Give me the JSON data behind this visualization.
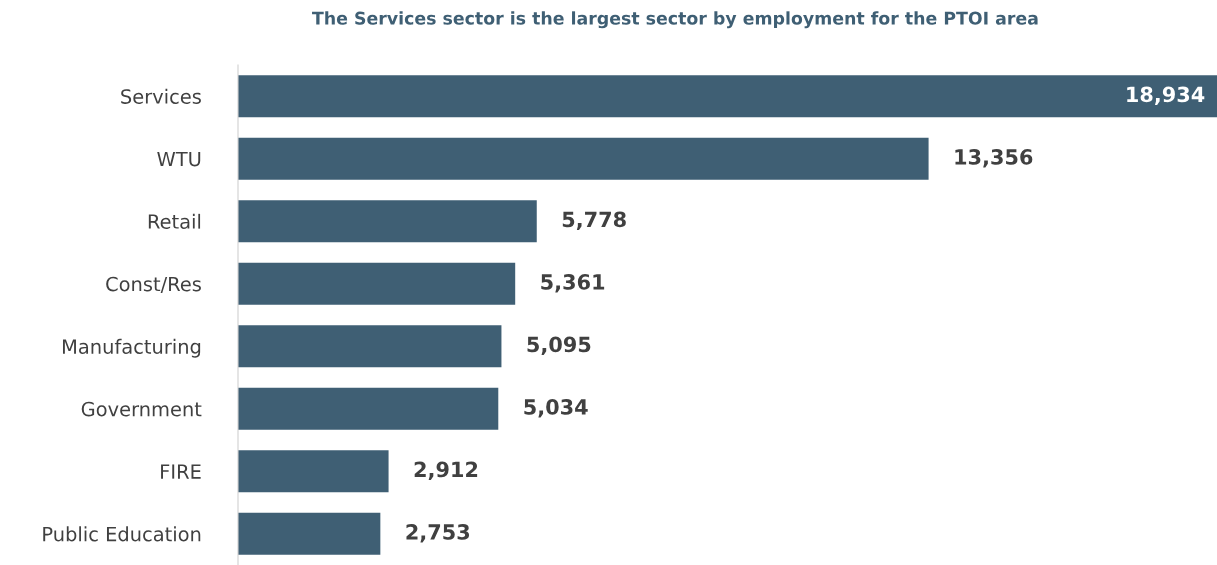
{
  "chart_data": {
    "type": "bar",
    "orientation": "horizontal",
    "title": "The Services sector is the largest sector by employment for the PTOI area",
    "categories": [
      "Services",
      "WTU",
      "Retail",
      "Const/Res",
      "Manufacturing",
      "Government",
      "FIRE",
      "Public Education"
    ],
    "values": [
      18934,
      13356,
      5778,
      5361,
      5095,
      5034,
      2912,
      2753
    ],
    "value_labels": [
      "18,934",
      "13,356",
      "5,778",
      "5,361",
      "5,095",
      "5,034",
      "2,912",
      "2,753"
    ],
    "color": "#3f5f74",
    "grid": false,
    "legend": false
  }
}
